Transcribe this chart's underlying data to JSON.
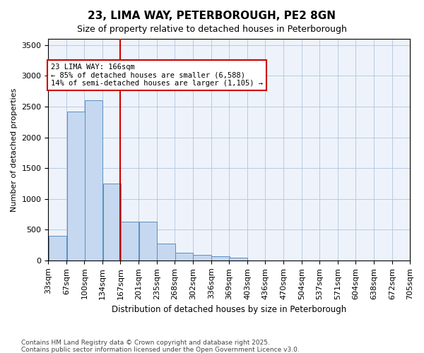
{
  "title": "23, LIMA WAY, PETERBOROUGH, PE2 8GN",
  "subtitle": "Size of property relative to detached houses in Peterborough",
  "xlabel": "Distribution of detached houses by size in Peterborough",
  "ylabel": "Number of detached properties",
  "footnote1": "Contains HM Land Registry data © Crown copyright and database right 2025.",
  "footnote2": "Contains public sector information licensed under the Open Government Licence v3.0.",
  "bar_color": "#c5d8f0",
  "bar_edge_color": "#5a8fc0",
  "grid_color": "#b0c4de",
  "background_color": "#eef3fb",
  "vline_x": 166,
  "vline_color": "#cc0000",
  "annotation_text": "23 LIMA WAY: 166sqm\n← 85% of detached houses are smaller (6,588)\n14% of semi-detached houses are larger (1,105) →",
  "annotation_box_color": "#cc0000",
  "bin_edges": [
    33,
    67,
    100,
    134,
    167,
    201,
    235,
    268,
    302,
    336,
    369,
    403,
    436,
    470,
    504,
    537,
    571,
    604,
    638,
    672,
    705
  ],
  "bin_labels": [
    "33sqm",
    "67sqm",
    "100sqm",
    "134sqm",
    "167sqm",
    "201sqm",
    "235sqm",
    "268sqm",
    "302sqm",
    "336sqm",
    "369sqm",
    "403sqm",
    "436sqm",
    "470sqm",
    "504sqm",
    "537sqm",
    "571sqm",
    "604sqm",
    "638sqm",
    "672sqm",
    "705sqm"
  ],
  "bar_heights": [
    400,
    2420,
    2600,
    1250,
    630,
    630,
    270,
    125,
    95,
    65,
    40,
    0,
    0,
    0,
    0,
    0,
    0,
    0,
    0,
    0
  ],
  "ylim": [
    0,
    3600
  ],
  "yticks": [
    0,
    500,
    1000,
    1500,
    2000,
    2500,
    3000,
    3500
  ]
}
